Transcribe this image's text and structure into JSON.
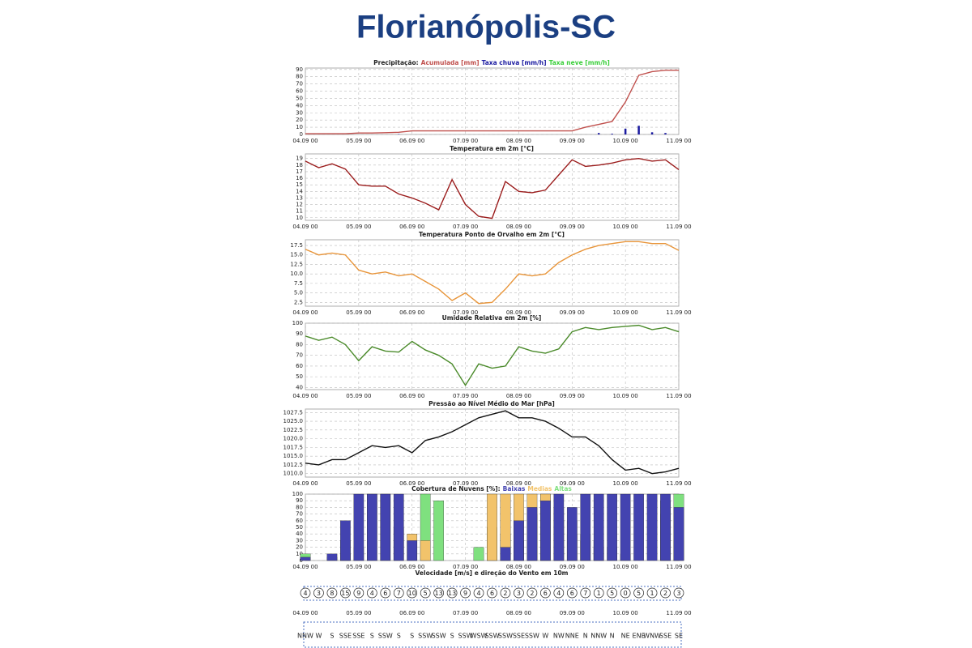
{
  "title": "Florianópolis-SC",
  "chart_data": [
    {
      "type": "combo",
      "title": "Precipitação:",
      "legend": "title",
      "grid": true,
      "x": [
        0,
        6,
        12,
        18,
        24,
        30,
        36,
        42,
        48,
        54,
        60,
        66,
        72,
        78,
        84,
        90,
        96,
        102,
        108,
        114,
        120,
        126,
        132,
        138,
        144,
        150,
        156,
        162,
        168
      ],
      "xlim": [
        0,
        168
      ],
      "xticks": [
        {
          "value": 0,
          "label": "04.09 00"
        },
        {
          "value": 24,
          "label": "05.09 00"
        },
        {
          "value": 48,
          "label": "06.09 00"
        },
        {
          "value": 72,
          "label": "07.09 00"
        },
        {
          "value": 96,
          "label": "08.09 00"
        },
        {
          "value": 120,
          "label": "09.09 00"
        },
        {
          "value": 144,
          "label": "10.09 00"
        },
        {
          "value": 168,
          "label": "11.09 00"
        }
      ],
      "ylim": [
        0,
        92
      ],
      "yticks": [
        0,
        10,
        20,
        30,
        40,
        50,
        60,
        70,
        80,
        90
      ],
      "series": [
        {
          "name": "Acumulada [mm]",
          "color": "#c0504d",
          "style": "line",
          "values": [
            1,
            1,
            1,
            1,
            2,
            2,
            2.5,
            3,
            5,
            5,
            5,
            5,
            5,
            5,
            5,
            5,
            5,
            5,
            5,
            5,
            5,
            10,
            14,
            18,
            45,
            82,
            87,
            89,
            89
          ]
        },
        {
          "name": "Taxa chuva [mm/h]",
          "color": "#1a1aa0",
          "style": "bar",
          "values": [
            0,
            0,
            0,
            0,
            0,
            0,
            0,
            0.5,
            0,
            0,
            0,
            0,
            0,
            0,
            0,
            0,
            0,
            0,
            0,
            0,
            0,
            0,
            2,
            1,
            8,
            12,
            3,
            2,
            0
          ]
        },
        {
          "name": "Taxa neve [mm/h]",
          "color": "#3ccf3c",
          "style": "bar",
          "values": [
            0,
            0,
            0,
            0,
            0,
            0,
            0,
            0,
            0,
            0,
            0,
            0,
            0,
            0,
            0,
            0,
            0,
            0,
            0,
            0,
            0,
            0,
            0,
            0,
            0,
            0,
            0,
            0,
            0
          ]
        }
      ]
    },
    {
      "type": "line",
      "title": "Temperatura em 2m [°C]",
      "grid": true,
      "x": [
        0,
        6,
        12,
        18,
        24,
        30,
        36,
        42,
        48,
        54,
        60,
        66,
        72,
        78,
        84,
        90,
        96,
        102,
        108,
        114,
        120,
        126,
        132,
        138,
        144,
        150,
        156,
        162,
        168
      ],
      "xlim": [
        0,
        168
      ],
      "xticks": [
        {
          "value": 0,
          "label": "04.09 00"
        },
        {
          "value": 24,
          "label": "05.09 00"
        },
        {
          "value": 48,
          "label": "06.09 00"
        },
        {
          "value": 72,
          "label": "07.09 00"
        },
        {
          "value": 96,
          "label": "08.09 00"
        },
        {
          "value": 120,
          "label": "09.09 00"
        },
        {
          "value": 144,
          "label": "10.09 00"
        },
        {
          "value": 168,
          "label": "11.09 00"
        }
      ],
      "ylim": [
        9.6,
        19.7
      ],
      "yticks": [
        10,
        11,
        12,
        13,
        14,
        15,
        16,
        17,
        18,
        19
      ],
      "series": [
        {
          "color": "#9b1c1c",
          "style": "line",
          "values": [
            18.6,
            17.6,
            18.2,
            17.4,
            15,
            14.8,
            14.8,
            13.6,
            13,
            12.2,
            11.2,
            15.8,
            12,
            10.2,
            9.9,
            15.5,
            14,
            13.8,
            14.2,
            16.5,
            18.8,
            17.8,
            18,
            18.3,
            18.8,
            19,
            18.6,
            18.8,
            17.3
          ]
        }
      ]
    },
    {
      "type": "line",
      "title": "Temperatura Ponto de Orvalho em 2m [°C]",
      "grid": true,
      "x": [
        0,
        6,
        12,
        18,
        24,
        30,
        36,
        42,
        48,
        54,
        60,
        66,
        72,
        78,
        84,
        90,
        96,
        102,
        108,
        114,
        120,
        126,
        132,
        138,
        144,
        150,
        156,
        162,
        168
      ],
      "xlim": [
        0,
        168
      ],
      "xticks": [
        {
          "value": 0,
          "label": "04.09 00"
        },
        {
          "value": 24,
          "label": "05.09 00"
        },
        {
          "value": 48,
          "label": "06.09 00"
        },
        {
          "value": 72,
          "label": "07.09 00"
        },
        {
          "value": 96,
          "label": "08.09 00"
        },
        {
          "value": 120,
          "label": "09.09 00"
        },
        {
          "value": 144,
          "label": "10.09 00"
        },
        {
          "value": 168,
          "label": "11.09 00"
        }
      ],
      "ylim": [
        1.5,
        19
      ],
      "yticks": [
        2.5,
        {
          "value": 5,
          "label": "5.0"
        },
        7.5,
        {
          "value": 10,
          "label": "10.0"
        },
        12.5,
        {
          "value": 15,
          "label": "15.0"
        },
        17.5
      ],
      "series": [
        {
          "color": "#e8953a",
          "style": "line",
          "values": [
            16.5,
            15,
            15.5,
            15,
            11,
            10,
            10.5,
            9.5,
            10,
            8,
            6,
            3,
            5,
            2.2,
            2.5,
            6,
            10,
            9.5,
            10,
            13,
            15,
            16.5,
            17.5,
            18,
            18.5,
            18.5,
            18,
            18,
            16.2
          ]
        }
      ]
    },
    {
      "type": "line",
      "title": "Umidade Relativa em 2m [%]",
      "grid": true,
      "x": [
        0,
        6,
        12,
        18,
        24,
        30,
        36,
        42,
        48,
        54,
        60,
        66,
        72,
        78,
        84,
        90,
        96,
        102,
        108,
        114,
        120,
        126,
        132,
        138,
        144,
        150,
        156,
        162,
        168
      ],
      "xlim": [
        0,
        168
      ],
      "xticks": [
        {
          "value": 0,
          "label": "04.09 00"
        },
        {
          "value": 24,
          "label": "05.09 00"
        },
        {
          "value": 48,
          "label": "06.09 00"
        },
        {
          "value": 72,
          "label": "07.09 00"
        },
        {
          "value": 96,
          "label": "08.09 00"
        },
        {
          "value": 120,
          "label": "09.09 00"
        },
        {
          "value": 144,
          "label": "10.09 00"
        },
        {
          "value": 168,
          "label": "11.09 00"
        }
      ],
      "ylim": [
        38,
        100
      ],
      "yticks": [
        40,
        50,
        60,
        70,
        80,
        90,
        100
      ],
      "series": [
        {
          "color": "#4a8a2a",
          "style": "line",
          "values": [
            88,
            84,
            87,
            80,
            65,
            78,
            74,
            73,
            83,
            75,
            70,
            62,
            42,
            62,
            58,
            60,
            78,
            74,
            72,
            76,
            92,
            96,
            94,
            96,
            97,
            98,
            94,
            96,
            92
          ]
        }
      ]
    },
    {
      "type": "line",
      "title": "Pressão ao Nível Médio do Mar [hPa]",
      "grid": true,
      "x": [
        0,
        6,
        12,
        18,
        24,
        30,
        36,
        42,
        48,
        54,
        60,
        66,
        72,
        78,
        84,
        90,
        96,
        102,
        108,
        114,
        120,
        126,
        132,
        138,
        144,
        150,
        156,
        162,
        168
      ],
      "xlim": [
        0,
        168
      ],
      "xticks": [
        {
          "value": 0,
          "label": "04.09 00"
        },
        {
          "value": 24,
          "label": "05.09 00"
        },
        {
          "value": 48,
          "label": "06.09 00"
        },
        {
          "value": 72,
          "label": "07.09 00"
        },
        {
          "value": 96,
          "label": "08.09 00"
        },
        {
          "value": 120,
          "label": "09.09 00"
        },
        {
          "value": 144,
          "label": "10.09 00"
        },
        {
          "value": 168,
          "label": "11.09 00"
        }
      ],
      "ylim": [
        1009,
        1028.5
      ],
      "yticks": [
        {
          "value": 1010,
          "label": "1010.0"
        },
        1012.5,
        {
          "value": 1015,
          "label": "1015.0"
        },
        1017.5,
        {
          "value": 1020,
          "label": "1020.0"
        },
        1022.5,
        {
          "value": 1025,
          "label": "1025.0"
        },
        1027.5
      ],
      "series": [
        {
          "color": "#111111",
          "style": "line",
          "values": [
            1013,
            1012.5,
            1014,
            1014,
            1016,
            1018,
            1017.5,
            1018,
            1016,
            1019.5,
            1020.5,
            1022,
            1024,
            1026,
            1027,
            1028,
            1026,
            1026,
            1025,
            1023,
            1020.5,
            1020.5,
            1018,
            1014,
            1011,
            1011.5,
            1010,
            1010.5,
            1011.5
          ]
        }
      ]
    },
    {
      "type": "overlay-bar",
      "title": "Cobertura de Nuvens [%]:",
      "legend": "title",
      "grid": true,
      "x": [
        0,
        6,
        12,
        18,
        24,
        30,
        36,
        42,
        48,
        54,
        60,
        66,
        72,
        78,
        84,
        90,
        96,
        102,
        108,
        114,
        120,
        126,
        132,
        138,
        144,
        150,
        156,
        162,
        168
      ],
      "xlim": [
        0,
        168
      ],
      "xticks": [
        {
          "value": 0,
          "label": "04.09 00"
        },
        {
          "value": 24,
          "label": "05.09 00"
        },
        {
          "value": 48,
          "label": "06.09 00"
        },
        {
          "value": 72,
          "label": "07.09 00"
        },
        {
          "value": 96,
          "label": "08.09 00"
        },
        {
          "value": 120,
          "label": "09.09 00"
        },
        {
          "value": 144,
          "label": "10.09 00"
        },
        {
          "value": 168,
          "label": "11.09 00"
        }
      ],
      "ylim": [
        0,
        100
      ],
      "yticks": [
        0,
        10,
        20,
        30,
        40,
        50,
        60,
        70,
        80,
        90,
        100
      ],
      "series": [
        {
          "name": "Baixas",
          "color": "#4343b0",
          "style": "bar",
          "values": [
            5,
            0,
            10,
            60,
            100,
            100,
            100,
            100,
            30,
            0,
            0,
            0,
            0,
            0,
            0,
            20,
            60,
            80,
            90,
            100,
            80,
            100,
            100,
            100,
            100,
            100,
            100,
            100,
            80
          ]
        },
        {
          "name": "Medias",
          "color": "#f2c36b",
          "style": "bar",
          "values": [
            0,
            0,
            0,
            10,
            20,
            100,
            100,
            50,
            40,
            30,
            0,
            0,
            0,
            0,
            100,
            100,
            100,
            100,
            100,
            80,
            60,
            40,
            30,
            20,
            10,
            0,
            0,
            70,
            30
          ]
        },
        {
          "name": "Altas",
          "color": "#7fe07f",
          "style": "bar",
          "values": [
            10,
            0,
            5,
            30,
            0,
            0,
            0,
            0,
            0,
            100,
            90,
            0,
            0,
            20,
            50,
            40,
            30,
            70,
            100,
            60,
            40,
            30,
            20,
            0,
            0,
            0,
            0,
            90,
            100
          ]
        }
      ]
    },
    {
      "type": "wind",
      "title": "Velocidade [m/s] e direção do Vento em 10m",
      "x": [
        0,
        6,
        12,
        18,
        24,
        30,
        36,
        42,
        48,
        54,
        60,
        66,
        72,
        78,
        84,
        90,
        96,
        102,
        108,
        114,
        120,
        126,
        132,
        138,
        144,
        150,
        156,
        162,
        168
      ],
      "xlim": [
        0,
        168
      ],
      "xticks": [
        {
          "value": 0,
          "label": "04.09 00"
        },
        {
          "value": 24,
          "label": "05.09 00"
        },
        {
          "value": 48,
          "label": "06.09 00"
        },
        {
          "value": 72,
          "label": "07.09 00"
        },
        {
          "value": 96,
          "label": "08.09 00"
        },
        {
          "value": 120,
          "label": "09.09 00"
        },
        {
          "value": 144,
          "label": "10.09 00"
        },
        {
          "value": 168,
          "label": "11.09 00"
        }
      ],
      "values": [
        4,
        3,
        8,
        15,
        9,
        4,
        6,
        7,
        10,
        5,
        13,
        13,
        9,
        4,
        6,
        2,
        3,
        2,
        6,
        4,
        6,
        7,
        1,
        5,
        0,
        5,
        1,
        2,
        3
      ],
      "directions": [
        "NNW",
        "W",
        "S",
        "SSE",
        "SSE",
        "S",
        "SSW",
        "S",
        "S",
        "SSW",
        "SSW",
        "S",
        "SSW",
        "WSW",
        "SSW",
        "SSW",
        "SSE",
        "SSW",
        "W",
        "NW",
        "NNE",
        "N",
        "NNW",
        "N",
        "NE",
        "ENE",
        "WNW",
        "SSE",
        "SE"
      ]
    }
  ]
}
